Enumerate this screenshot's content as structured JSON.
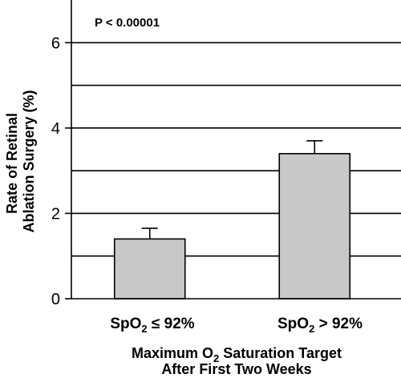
{
  "chart_data": {
    "type": "bar",
    "categories": [
      {
        "prefix": "SpO",
        "sub": "2",
        "suffix": " ≤ 92%"
      },
      {
        "prefix": "SpO",
        "sub": "2",
        "suffix": " > 92%"
      }
    ],
    "values": [
      1.4,
      3.4
    ],
    "error_upper": [
      1.65,
      3.7
    ],
    "ylim": [
      0,
      7
    ],
    "yticks": [
      0,
      2,
      4,
      6
    ],
    "gridlines": [
      1,
      2,
      3,
      4,
      5,
      6
    ],
    "ylabel_lines": [
      "Rate of Retinal",
      "Ablation Surgery (%)"
    ],
    "xlabel_line1": {
      "prefix": "Maximum O",
      "sub": "2",
      "suffix": " Saturation Target"
    },
    "xlabel_line2": "After First Two Weeks",
    "annotation": "P < 0.00001",
    "bar_color": "#c8c8c8",
    "grid": true
  }
}
